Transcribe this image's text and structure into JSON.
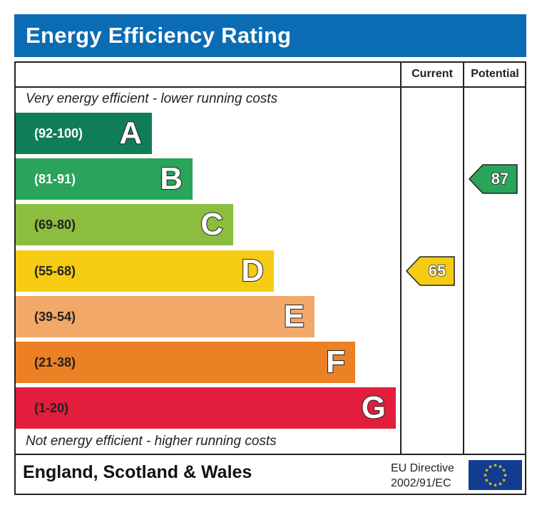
{
  "title": "Energy Efficiency Rating",
  "columns": {
    "current": "Current",
    "potential": "Potential"
  },
  "captions": {
    "top": "Very energy efficient - lower running costs",
    "bottom": "Not energy efficient - higher running costs"
  },
  "footer": {
    "region": "England, Scotland & Wales",
    "directive_line1": "EU Directive",
    "directive_line2": "2002/91/EC",
    "flag_icon": "eu-flag-icon"
  },
  "chart_data": {
    "type": "bar",
    "title": "Energy Efficiency Rating",
    "bands": [
      {
        "letter": "A",
        "range": "(92-100)",
        "color": "#0f7d58",
        "text_color": "#ffffff"
      },
      {
        "letter": "B",
        "range": "(81-91)",
        "color": "#29a45a",
        "text_color": "#ffffff"
      },
      {
        "letter": "C",
        "range": "(69-80)",
        "color": "#8cbd3f",
        "text_color": "#222222"
      },
      {
        "letter": "D",
        "range": "(55-68)",
        "color": "#f6cb14",
        "text_color": "#222222"
      },
      {
        "letter": "E",
        "range": "(39-54)",
        "color": "#f2a869",
        "text_color": "#222222"
      },
      {
        "letter": "F",
        "range": "(21-38)",
        "color": "#ec8024",
        "text_color": "#222222"
      },
      {
        "letter": "G",
        "range": "(1-20)",
        "color": "#e31d3c",
        "text_color": "#222222"
      }
    ],
    "current": {
      "value": "65",
      "band": "D",
      "color": "#f6cb14"
    },
    "potential": {
      "value": "87",
      "band": "B",
      "color": "#29a45a"
    }
  }
}
